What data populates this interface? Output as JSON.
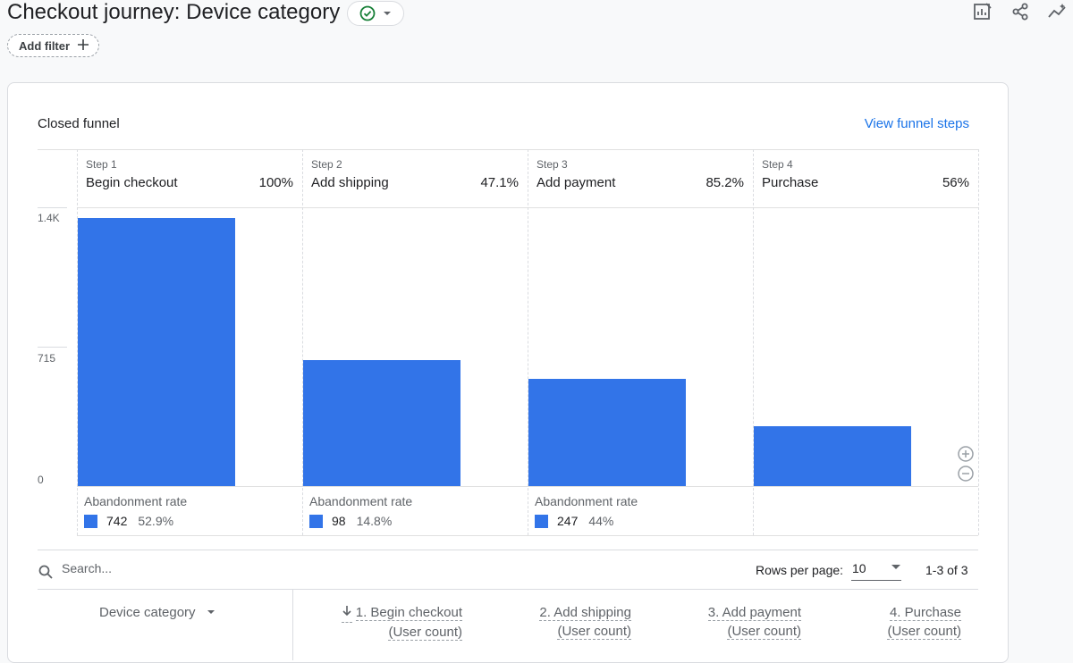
{
  "header": {
    "title": "Checkout journey: Device category",
    "add_filter_label": "Add filter"
  },
  "card": {
    "title": "Closed funnel",
    "view_steps_label": "View funnel steps"
  },
  "chart_data": {
    "type": "bar",
    "yticks": [
      "1.4K",
      "715",
      "0"
    ],
    "ylim": [
      0,
      1430
    ],
    "steps": [
      {
        "step": "Step 1",
        "name": "Begin checkout",
        "pct": "100%",
        "value": 1402,
        "abandon_label": "Abandonment rate",
        "abandon_count": "742",
        "abandon_pct": "52.9%"
      },
      {
        "step": "Step 2",
        "name": "Add shipping",
        "pct": "47.1%",
        "value": 660,
        "abandon_label": "Abandonment rate",
        "abandon_count": "98",
        "abandon_pct": "14.8%"
      },
      {
        "step": "Step 3",
        "name": "Add payment",
        "pct": "85.2%",
        "value": 562,
        "abandon_label": "Abandonment rate",
        "abandon_count": "247",
        "abandon_pct": "44%"
      },
      {
        "step": "Step 4",
        "name": "Purchase",
        "pct": "56%",
        "value": 315
      }
    ],
    "colors": {
      "bar": "#3274e8"
    }
  },
  "table": {
    "search_placeholder": "Search...",
    "rows_per_page_label": "Rows per page:",
    "rows_per_page_value": "10",
    "range_label": "1-3 of 3",
    "dimension_header": "Device category",
    "metrics": [
      {
        "line1": "1. Begin checkout",
        "line2": "(User count)",
        "sorted": true
      },
      {
        "line1": "2. Add shipping",
        "line2": "(User count)"
      },
      {
        "line1": "3. Add payment",
        "line2": "(User count)"
      },
      {
        "line1": "4. Purchase",
        "line2": "(User count)"
      }
    ]
  }
}
